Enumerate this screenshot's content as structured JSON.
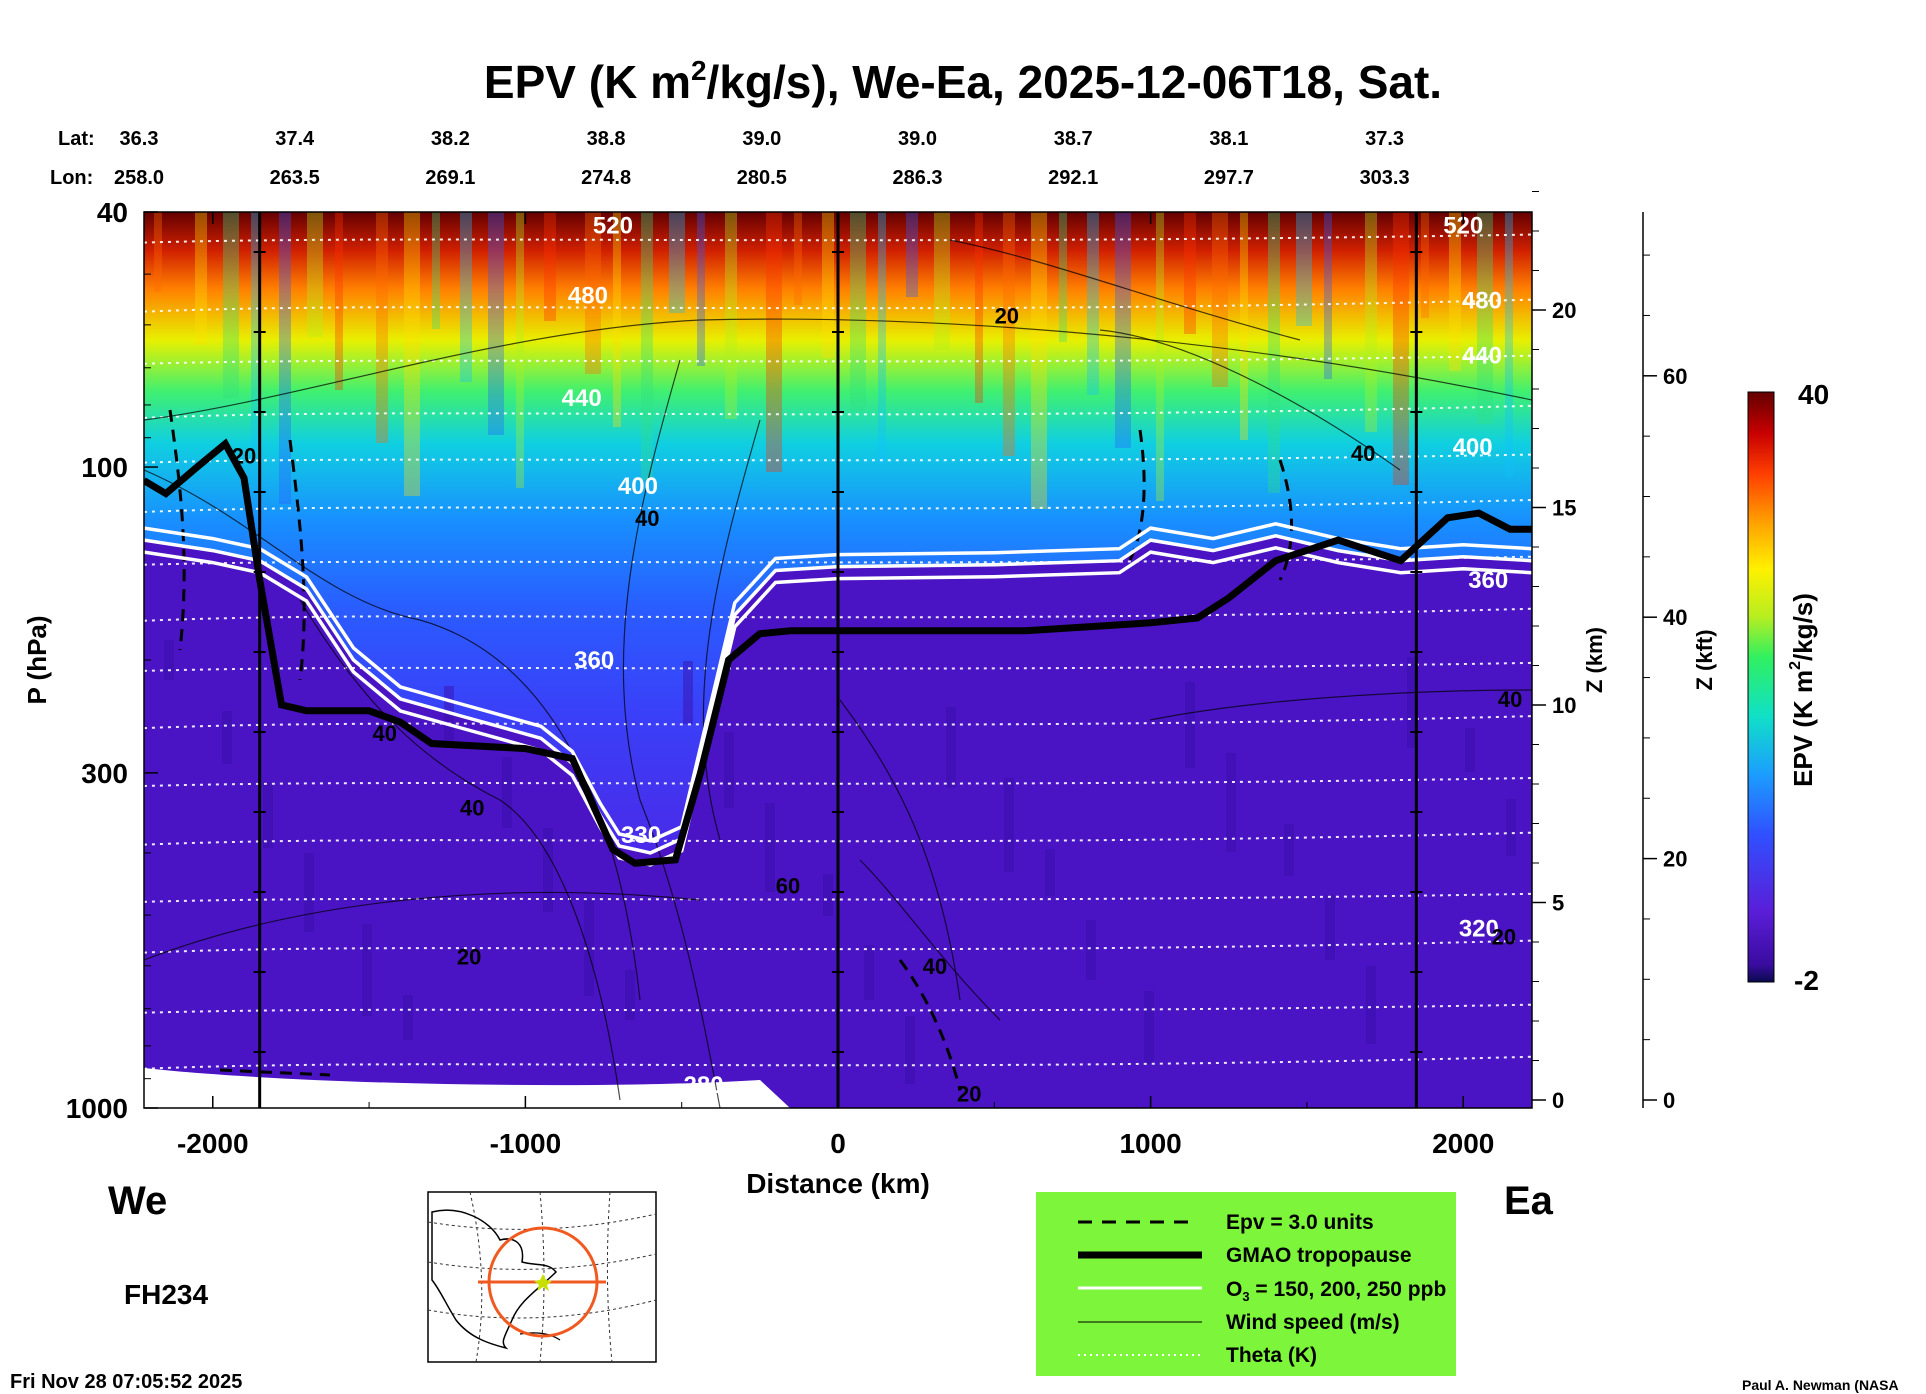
{
  "chart_data": {
    "type": "heatmap",
    "title": "EPV (K m²/kg/s), We-Ea, 2025-12-06T18, Sat.",
    "title_parts": {
      "pre": "EPV (K m",
      "sup": "2",
      "post": "/kg/s), We-Ea, 2025-12-06T18, Sat."
    },
    "xlabel": "Distance (km)",
    "ylabel": "P (hPa)",
    "xlim": [
      -2220,
      2220
    ],
    "ylim": [
      1000,
      40
    ],
    "x_ticks": [
      -2000,
      -1000,
      0,
      1000,
      2000
    ],
    "x_tick_labels": [
      "-2000",
      "-1000",
      "0",
      "1000",
      "2000"
    ],
    "y_ticks": [
      40,
      100,
      300,
      1000
    ],
    "y_tick_labels": [
      "40",
      "100",
      "300",
      "1000"
    ],
    "z_km_axis": {
      "label": "Z (km)",
      "ticks": [
        0,
        5,
        10,
        15,
        20
      ],
      "labels": [
        "0",
        "5",
        "10",
        "15",
        "20"
      ]
    },
    "z_kft_axis": {
      "label": "Z (kft)",
      "ticks": [
        0,
        20,
        40,
        60
      ],
      "labels": [
        "0",
        "20",
        "40",
        "60"
      ]
    },
    "lat_label": "Lat:",
    "lon_label": "Lon:",
    "lat_values": [
      "36.3",
      "37.4",
      "38.2",
      "38.8",
      "39.0",
      "39.0",
      "38.7",
      "38.1",
      "37.3"
    ],
    "lon_values": [
      "258.0",
      "263.5",
      "269.1",
      "274.8",
      "280.5",
      "286.3",
      "292.1",
      "297.7",
      "303.3"
    ],
    "colorbar": {
      "label": "EPV (K m²/kg/s)",
      "label_pre": "EPV (K m",
      "label_sup": "2",
      "label_post": "/kg/s)",
      "min": -2,
      "max": 40,
      "min_label": "-2",
      "max_label": "40"
    },
    "vertical_markers_km": [
      -1850,
      0,
      1850
    ],
    "theta_contour_labels": [
      {
        "text": "520",
        "x": -720,
        "p": 42
      },
      {
        "text": "480",
        "x": -800,
        "p": 54
      },
      {
        "text": "440",
        "x": -820,
        "p": 78
      },
      {
        "text": "400",
        "x": -640,
        "p": 107
      },
      {
        "text": "360",
        "x": -780,
        "p": 200
      },
      {
        "text": "330",
        "x": -630,
        "p": 375
      },
      {
        "text": "320",
        "x": 2050,
        "p": 525
      },
      {
        "text": "280",
        "x": -430,
        "p": 920
      },
      {
        "text": "520",
        "x": 2000,
        "p": 42
      },
      {
        "text": "480",
        "x": 2060,
        "p": 55
      },
      {
        "text": "440",
        "x": 2060,
        "p": 67
      },
      {
        "text": "400",
        "x": 2030,
        "p": 93
      },
      {
        "text": "360",
        "x": 2080,
        "p": 150
      }
    ],
    "wind_contour_labels": [
      {
        "text": "20",
        "x": 540,
        "p": 58
      },
      {
        "text": "40",
        "x": 1680,
        "p": 95
      },
      {
        "text": "40",
        "x": -610,
        "p": 120
      },
      {
        "text": "40",
        "x": -1450,
        "p": 260
      },
      {
        "text": "40",
        "x": -1170,
        "p": 340
      },
      {
        "text": "20",
        "x": -1180,
        "p": 580
      },
      {
        "text": "60",
        "x": -160,
        "p": 450
      },
      {
        "text": "40",
        "x": 310,
        "p": 600
      },
      {
        "text": "20",
        "x": 420,
        "p": 950
      },
      {
        "text": "40",
        "x": 2150,
        "p": 230
      },
      {
        "text": "20",
        "x": 2130,
        "p": 540
      },
      {
        "text": "20",
        "x": -1900,
        "p": 96
      }
    ],
    "tropopause_profile": [
      {
        "x": -2220,
        "p": 105
      },
      {
        "x": -2150,
        "p": 110
      },
      {
        "x": -2050,
        "p": 100
      },
      {
        "x": -1960,
        "p": 92
      },
      {
        "x": -1900,
        "p": 104
      },
      {
        "x": -1850,
        "p": 150
      },
      {
        "x": -1780,
        "p": 235
      },
      {
        "x": -1700,
        "p": 240
      },
      {
        "x": -1500,
        "p": 240
      },
      {
        "x": -1400,
        "p": 250
      },
      {
        "x": -1300,
        "p": 270
      },
      {
        "x": -1000,
        "p": 275
      },
      {
        "x": -850,
        "p": 285
      },
      {
        "x": -780,
        "p": 340
      },
      {
        "x": -720,
        "p": 395
      },
      {
        "x": -650,
        "p": 415
      },
      {
        "x": -520,
        "p": 410
      },
      {
        "x": -440,
        "p": 300
      },
      {
        "x": -350,
        "p": 200
      },
      {
        "x": -250,
        "p": 182
      },
      {
        "x": -150,
        "p": 180
      },
      {
        "x": 0,
        "p": 180
      },
      {
        "x": 600,
        "p": 180
      },
      {
        "x": 1000,
        "p": 175
      },
      {
        "x": 1150,
        "p": 172
      },
      {
        "x": 1250,
        "p": 160
      },
      {
        "x": 1400,
        "p": 140
      },
      {
        "x": 1600,
        "p": 130
      },
      {
        "x": 1800,
        "p": 140
      },
      {
        "x": 1950,
        "p": 120
      },
      {
        "x": 2050,
        "p": 118
      },
      {
        "x": 2150,
        "p": 125
      },
      {
        "x": 2220,
        "p": 125
      }
    ],
    "ozone_profile_mid": [
      {
        "x": -2220,
        "p": 130
      },
      {
        "x": -2000,
        "p": 135
      },
      {
        "x": -1850,
        "p": 140
      },
      {
        "x": -1700,
        "p": 155
      },
      {
        "x": -1550,
        "p": 200
      },
      {
        "x": -1400,
        "p": 230
      },
      {
        "x": -1200,
        "p": 245
      },
      {
        "x": -950,
        "p": 265
      },
      {
        "x": -850,
        "p": 290
      },
      {
        "x": -760,
        "p": 350
      },
      {
        "x": -700,
        "p": 390
      },
      {
        "x": -600,
        "p": 400
      },
      {
        "x": -500,
        "p": 380
      },
      {
        "x": -420,
        "p": 260
      },
      {
        "x": -330,
        "p": 170
      },
      {
        "x": -200,
        "p": 145
      },
      {
        "x": 0,
        "p": 143
      },
      {
        "x": 500,
        "p": 142
      },
      {
        "x": 900,
        "p": 140
      },
      {
        "x": 1000,
        "p": 130
      },
      {
        "x": 1200,
        "p": 135
      },
      {
        "x": 1400,
        "p": 128
      },
      {
        "x": 1600,
        "p": 135
      },
      {
        "x": 1800,
        "p": 140
      },
      {
        "x": 2000,
        "p": 138
      },
      {
        "x": 2220,
        "p": 140
      }
    ],
    "series_legend": [
      "Epv = 3.0 units",
      "GMAO tropopause",
      "O₃ = 150, 200, 250 ppb",
      "Wind speed (m/s)",
      "Theta (K)"
    ],
    "legend_parts": {
      "o3_pre": "O",
      "o3_sub": "3",
      "o3_post": " = 150, 200, 250 ppb"
    }
  },
  "labels": {
    "west": "We",
    "east": "Ea",
    "forecast_hour": "FH234",
    "timestamp": "Fri Nov 28 07:05:52 2025",
    "credit": "Paul A. Newman (NASA"
  },
  "colors": {
    "purple": "#4a14c4",
    "tropopause": "#000000",
    "ozone": "#ffffff",
    "legend_bg": "#7cf53a",
    "map_circle": "#f05a20",
    "map_marker": "#c8e000"
  },
  "icons": {
    "inset_map": "globe-map-icon"
  }
}
